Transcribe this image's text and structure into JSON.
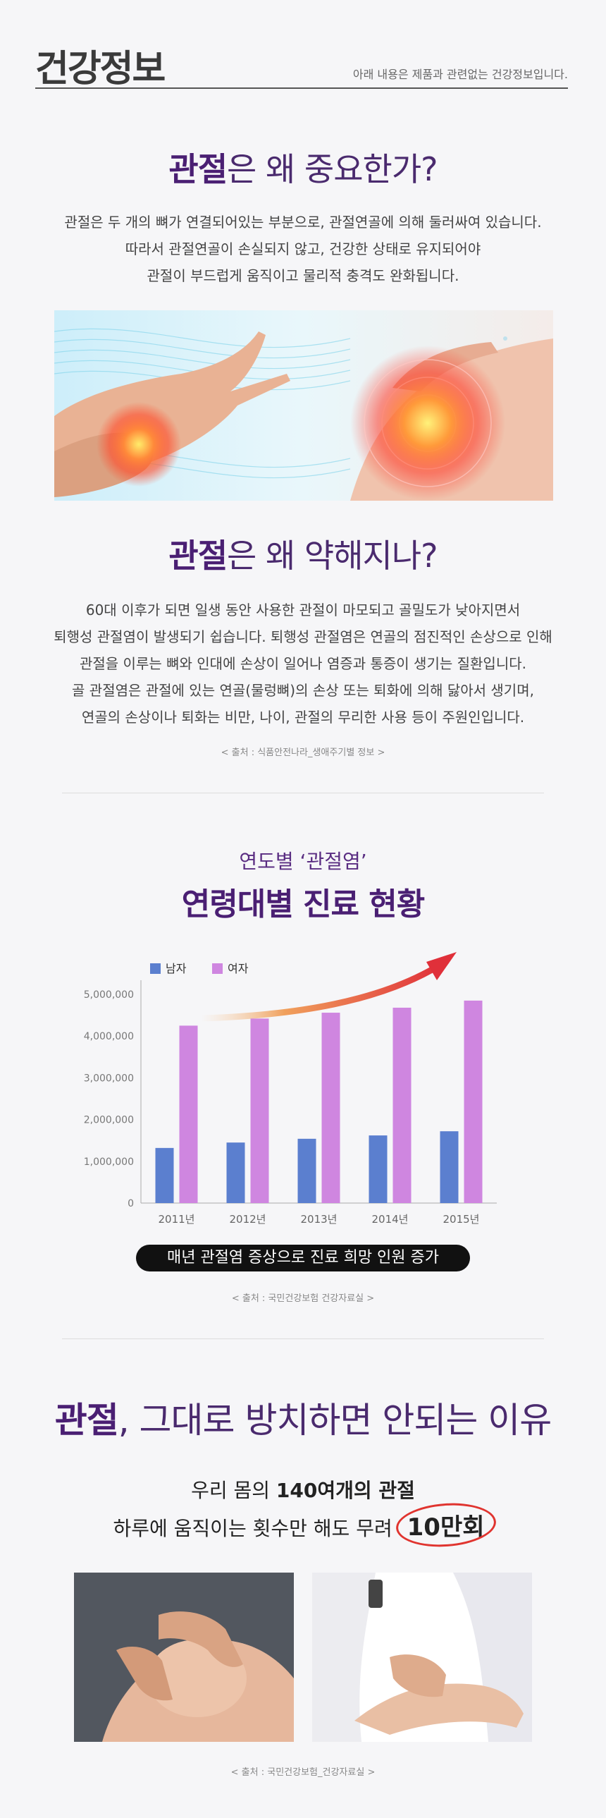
{
  "header": {
    "title": "건강정보",
    "note": "아래 내용은 제품과 관련없는 건강정보입니다."
  },
  "section1": {
    "title_em": "관절",
    "title_rest": "은 왜 중요한가?",
    "lines": [
      "관절은 두 개의 뼈가 연결되어있는 부분으로, 관절연골에 의해 둘러싸여 있습니다.",
      "따라서 관절연골이 손실되지 않고, 건강한 상태로 유지되어야",
      "관절이 부드럽게 움직이고 물리적 충격도 완화됩니다."
    ]
  },
  "section2": {
    "title_em": "관절",
    "title_rest": "은 왜 약해지나?",
    "lines": [
      "60대 이후가 되면 일생 동안 사용한 관절이 마모되고 골밀도가 낮아지면서",
      "퇴행성 관절염이 발생되기 쉽습니다. 퇴행성 관절염은 연골의 점진적인 손상으로 인해",
      "관절을 이루는 뼈와 인대에 손상이 일어나 염증과 통증이 생기는 질환입니다.",
      "골 관절염은 관절에 있는 연골(물렁뼈)의 손상 또는 퇴화에 의해 닳아서 생기며,",
      "연골의 손상이나 퇴화는 비만, 나이, 관절의 무리한 사용 등이 주원인입니다."
    ],
    "source": "< 출처 : 식품안전나라_생애주기별 정보 >"
  },
  "chart_section": {
    "subtitle": "연도별 ‘관절염’",
    "title": "연령대별 진료 현황",
    "pill": "매년 관절염 증상으로 진료 희망 인원 증가",
    "source": "< 출처 : 국민건강보험 건강자료실 >"
  },
  "chart_data": {
    "type": "bar",
    "categories": [
      "2011년",
      "2012년",
      "2013년",
      "2014년",
      "2015년"
    ],
    "series": [
      {
        "name": "남자",
        "color": "#5b7fcf",
        "values": [
          1320000,
          1450000,
          1540000,
          1620000,
          1720000
        ]
      },
      {
        "name": "여자",
        "color": "#cf86e0",
        "values": [
          4250000,
          4420000,
          4560000,
          4680000,
          4850000
        ]
      }
    ],
    "yticks": [
      "0",
      "1,000,000",
      "2,000,000",
      "3,000,000",
      "4,000,000",
      "5,000,000"
    ],
    "ylim": [
      0,
      5000000
    ],
    "legend": "top-left",
    "grid": false
  },
  "section3": {
    "title_em": "관절",
    "title_rest": ", 그대로 방치하면 안되는 이유",
    "fact1_pre": "우리 몸의 ",
    "fact1_bold": "140여개의 관절",
    "fact2_pre": "하루에 움직이는 횟수만 해도 무려 ",
    "fact2_circled": "10만회",
    "source": "< 출처 : 국민건강보험_건강자료실 >"
  }
}
